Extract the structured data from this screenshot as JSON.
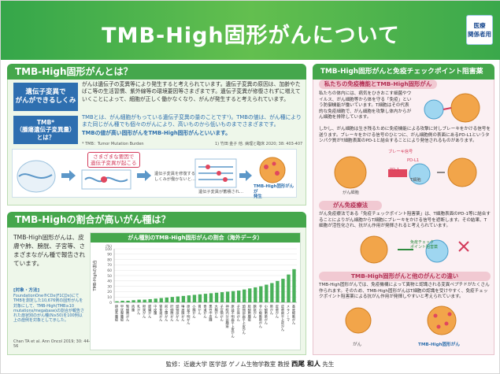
{
  "header": {
    "title": "TMB-High固形がんについて",
    "badge": [
      "医療",
      "関係者用"
    ]
  },
  "section1": {
    "title": "TMB-High固形がんとは？",
    "q1_label": "遺伝子変異で\nがんができるしくみ",
    "q1_text": "がんは遺伝子の変異等により発生すると考えられています。遺伝子変異の原因は、加齢やたばこ等の生活習慣、紫外線等の環境要因等さまざまです。遺伝子変異が修復されずに増えていくことによって、細胞が正しく働かなくなり、がんが発生すると考えられています。",
    "q2_label": "TMB*\n（腫瘍遺伝子変異量）\nとは？",
    "q2_text": "TMBとは、がん細胞がもっている遺伝子変異の量のことです¹)。TMBの値は、がん種によりまた同じがん種でも個々のがんにより、高いものから低いものまでさまざまです。",
    "q2_highlight": "TMBの値が高い固形がんをTMB-High固形がんといいます。",
    "q2_footnote": "* TMB：Tumor Mutation Burden",
    "q2_ref": "1) 竹田 金子 他. 病理と臨床 2020; 38: 403-407",
    "diagram_bubble": "さまざまな要因で\n遺伝子変異が起こる",
    "diagram_caption1": "遺伝子変異を修復する\nしくみが働かないと…",
    "diagram_caption2": "遺伝子変異が蓄積され…",
    "diagram_caption3": "TMB-High固形がんが\n発生"
  },
  "section2": {
    "title": "TMB-Highの割合が高いがん種は？",
    "intro": "TMB-High固形がんは、皮膚や肺、膀胱、子宮等、さまざまながん種で報告されています。",
    "method_title": "[対象・方法]",
    "method_text": "FoundationOne®CDx(F1CDx)にてTMBを測定した10,676例の固形がんを対象にして、TMB-High(TMB≥10 mutations/megabase)の割合が報告された症状別のがん種(N≥50)を100例以上の症例を対象として示した。",
    "citation": "Chan TA et al. Ann Oncol 2019; 30: 44-56"
  },
  "chart_data": {
    "type": "bar",
    "title": "がん種別のTMB-High固形がんの割合（海外データ）",
    "ylabel": "TMB-Highの割合",
    "yunit": "(%)",
    "ylim": [
      0,
      100
    ],
    "yticks": [
      0,
      10,
      20,
      30,
      40,
      50,
      60,
      70,
      80,
      90,
      100
    ],
    "categories": [
      "胆道系腫瘍",
      "甲状腺腫瘍",
      "腎細胞がん",
      "肉腫",
      "乳がん",
      "卵巣がん",
      "膵臓がん",
      "中皮腫",
      "胃食道がん",
      "前立腺がん",
      "肝細胞がん",
      "頭頸部がん",
      "唾液腺がん",
      "原発不明がん",
      "小腸がん",
      "胃がん",
      "食道がん",
      "悪性中皮腫",
      "大腸がん",
      "子宮頸がん",
      "神経内分泌腫瘍",
      "原発不明扁平上皮がん",
      "子宮体がん",
      "頭頸部扁平上皮がん",
      "胚細胞腫瘍",
      "膀胱がん",
      "非小細胞肺がん",
      "小細胞肺がん",
      "肺がん",
      "皮膚がん",
      "皮膚扁平上皮がん",
      "メラノーマ",
      "基底細胞がん"
    ],
    "values": [
      2,
      3,
      3,
      4,
      5,
      5,
      6,
      7,
      8,
      9,
      10,
      11,
      12,
      13,
      14,
      15,
      16,
      17,
      18,
      19,
      20,
      21,
      22,
      24,
      26,
      28,
      30,
      33,
      36,
      40,
      44,
      52,
      62
    ]
  },
  "section3": {
    "title": "TMB-High固形がんと免疫チェックポイント阻害薬",
    "sub1_title": "私たちの免疫機能とTMB-High固形がん",
    "sub1_text": "私たちの体内には、病気をひきおこす細菌やウイルス、がん細胞等から体を守る「免疫」という防御機能が働いています。T細胞はその代表的な免疫細胞で、がん細胞を攻撃し体内からがん細胞を排除しています。",
    "sub1_text2": "しかし、がん細胞は生き残るために免疫機能による攻撃に対しブレーキをかける信号を送ります。ブレーキをかける信号のひとつに、がん細胞側の表面にあるPD-L1というタンパク質がT細胞表面のPD-1と結合することにより発信されるものがあります。",
    "sub2_title": "がん免疫療法",
    "sub2_text": "がん免疫療法である「免疫チェックポイント阻害薬」は、T細胞表面のPD-1等に結合することによりがん細胞からT細胞にブレーキをかける信号を遮断します。その結果、T細胞が活性化され、抗がん作用が発揮されると考えられています。",
    "sub3_title": "TMB-High固形がんと他のがんとの違い",
    "sub3_text": "TMB-High固形がんでは、免疫機構によって異物と認識される変異ペプチドがたくさん作られます。そのため、TMB-High固形がんはT細胞の認識を受けやすく、免疫チェックポイント阻害薬による抗がん作用が発揮しやすいと考えられています。",
    "lbl_tcell": "T細胞",
    "lbl_cancer": "がん細胞",
    "lbl_pd1": "PD-1",
    "lbl_pdl1": "PD-L1",
    "lbl_brake": "ブレーキ信号",
    "lbl_drug": "免疫チェック\nポイント阻害薬",
    "lbl_cancer2": "がん",
    "lbl_tmbhigh": "TMB-High固形がん"
  },
  "footer": {
    "prefix": "監修：近畿大学 医学部 ゲノム生物学教室 教授",
    "name": "西尾 和人",
    "suffix": "先生"
  }
}
